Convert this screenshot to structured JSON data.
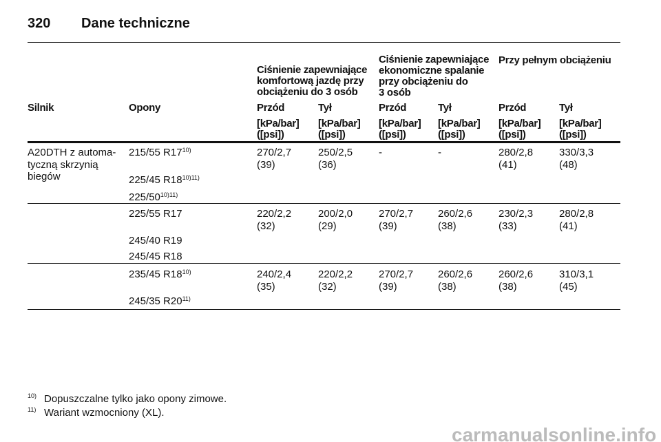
{
  "header": {
    "page_number": "320",
    "title": "Dane techniczne"
  },
  "table": {
    "group_headers": [
      [
        "Ciśnienie zapewniające",
        "komfortową jazdę przy",
        "obciążeniu do 3 osób"
      ],
      [
        "Ciśnienie zapewniające",
        "ekonomiczne spalanie",
        "przy obciążeniu do",
        "3 osób"
      ],
      [
        "Przy pełnym obciążeniu"
      ]
    ],
    "columns": [
      "Silnik",
      "Opony",
      "Przód",
      "Tył",
      "Przód",
      "Tył",
      "Przód",
      "Tył"
    ],
    "units": [
      "[kPa/bar]",
      "([psi])"
    ],
    "rows": [
      {
        "engine": [
          "A20DTH z automa-",
          "tyczną skrzynią",
          "biegów"
        ],
        "tires": [
          {
            "name": "215/55 R17",
            "notes": "10)"
          },
          {
            "name": "225/45 R18",
            "notes": "10)11)"
          },
          {
            "name": "225/50",
            "notes": "10)11)"
          }
        ],
        "values": [
          [
            "270/2,7",
            "(39)"
          ],
          [
            "250/2,5",
            "(36)"
          ],
          [
            "-"
          ],
          [
            "-"
          ],
          [
            "280/2,8",
            "(41)"
          ],
          [
            "330/3,3",
            "(48)"
          ]
        ]
      },
      {
        "engine": [],
        "tires": [
          {
            "name": "225/55 R17"
          },
          {
            "name": "245/40 R19"
          },
          {
            "name": "245/45 R18"
          }
        ],
        "values": [
          [
            "220/2,2",
            "(32)"
          ],
          [
            "200/2,0",
            "(29)"
          ],
          [
            "270/2,7",
            "(39)"
          ],
          [
            "260/2,6",
            "(38)"
          ],
          [
            "230/2,3",
            "(33)"
          ],
          [
            "280/2,8",
            "(41)"
          ]
        ]
      },
      {
        "engine": [],
        "tires": [
          {
            "name": "235/45 R18",
            "notes": "10)"
          },
          {
            "name": "245/35 R20",
            "notes": "11)"
          }
        ],
        "values": [
          [
            "240/2,4",
            "(35)"
          ],
          [
            "220/2,2",
            "(32)"
          ],
          [
            "270/2,7",
            "(39)"
          ],
          [
            "260/2,6",
            "(38)"
          ],
          [
            "260/2,6",
            "(38)"
          ],
          [
            "310/3,1",
            "(45)"
          ]
        ]
      }
    ]
  },
  "footnotes": [
    {
      "mark": "10)",
      "text": "Dopuszczalne tylko jako opony zimowe."
    },
    {
      "mark": "11)",
      "text": "Wariant wzmocniony (XL)."
    }
  ],
  "watermark": "carmanualsonline.info"
}
